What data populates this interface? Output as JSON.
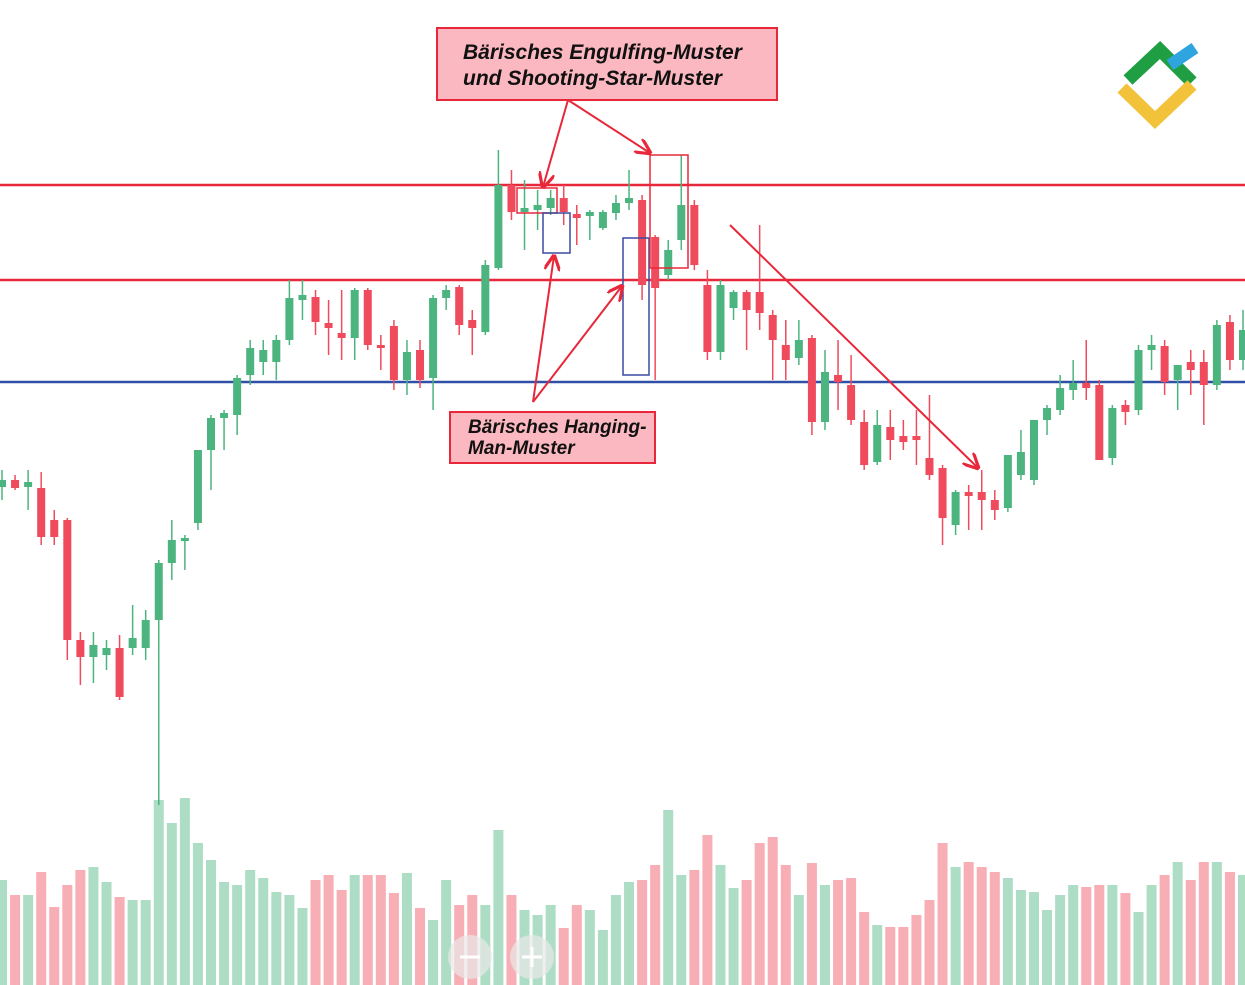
{
  "chart_data": {
    "type": "candlestick",
    "annotations": [
      [
        "Bärisches Engulfing-Muster",
        "und Shooting-Star-Muster"
      ],
      [
        "Bärisches Hanging-",
        "Man-Muster"
      ]
    ],
    "ylim": [
      15,
      1000
    ],
    "volume_ylim": [
      0,
      200
    ],
    "up_color": "#4cb47f",
    "down_color": "#ef4b5c",
    "levels": [
      {
        "value": 815,
        "color": "#e8283a"
      },
      {
        "value": 720,
        "color": "#e8283a"
      },
      {
        "value": 618,
        "color": "#3050a8"
      }
    ],
    "ohlc": [
      [
        513,
        530,
        500,
        520
      ],
      [
        520,
        525,
        510,
        512
      ],
      [
        513,
        530,
        490,
        518
      ],
      [
        512,
        528,
        455,
        463
      ],
      [
        480,
        490,
        455,
        463
      ],
      [
        480,
        482,
        340,
        360
      ],
      [
        360,
        368,
        315,
        343
      ],
      [
        343,
        368,
        317,
        355
      ],
      [
        345,
        360,
        330,
        352
      ],
      [
        352,
        365,
        300,
        303
      ],
      [
        352,
        395,
        345,
        362
      ],
      [
        352,
        390,
        340,
        380
      ],
      [
        380,
        440,
        195,
        437
      ],
      [
        437,
        480,
        420,
        460
      ],
      [
        459,
        465,
        430,
        462
      ],
      [
        477,
        550,
        470,
        550
      ],
      [
        550,
        585,
        510,
        582
      ],
      [
        582,
        590,
        550,
        587
      ],
      [
        585,
        625,
        565,
        622
      ],
      [
        625,
        660,
        615,
        652
      ],
      [
        638,
        660,
        625,
        650
      ],
      [
        638,
        665,
        620,
        660
      ],
      [
        660,
        720,
        655,
        702
      ],
      [
        700,
        720,
        680,
        705
      ],
      [
        703,
        710,
        665,
        678
      ],
      [
        677,
        700,
        645,
        672
      ],
      [
        667,
        710,
        640,
        662
      ],
      [
        662,
        712,
        640,
        710
      ],
      [
        710,
        712,
        650,
        655
      ],
      [
        655,
        665,
        630,
        652
      ],
      [
        674,
        680,
        610,
        620
      ],
      [
        620,
        660,
        605,
        648
      ],
      [
        650,
        660,
        612,
        620
      ],
      [
        622,
        705,
        590,
        702
      ],
      [
        702,
        715,
        690,
        710
      ],
      [
        713,
        715,
        665,
        675
      ],
      [
        680,
        690,
        645,
        672
      ],
      [
        668,
        740,
        665,
        735
      ],
      [
        732,
        850,
        730,
        815
      ],
      [
        815,
        830,
        780,
        788
      ],
      [
        788,
        820,
        750,
        792
      ],
      [
        790,
        810,
        770,
        795
      ],
      [
        792,
        810,
        785,
        802
      ],
      [
        802,
        815,
        775,
        788
      ],
      [
        786,
        795,
        755,
        782
      ],
      [
        784,
        790,
        760,
        788
      ],
      [
        772,
        790,
        770,
        788
      ],
      [
        787,
        805,
        780,
        797
      ],
      [
        797,
        830,
        790,
        802
      ],
      [
        800,
        805,
        700,
        715
      ],
      [
        763,
        765,
        620,
        712
      ],
      [
        725,
        760,
        720,
        750
      ],
      [
        760,
        845,
        750,
        795
      ],
      [
        795,
        800,
        730,
        735
      ],
      [
        715,
        730,
        640,
        648
      ],
      [
        648,
        720,
        640,
        715
      ],
      [
        692,
        710,
        680,
        708
      ],
      [
        708,
        710,
        650,
        690
      ],
      [
        708,
        775,
        670,
        687
      ],
      [
        685,
        690,
        620,
        660
      ],
      [
        655,
        680,
        620,
        640
      ],
      [
        642,
        680,
        635,
        660
      ],
      [
        662,
        665,
        565,
        578
      ],
      [
        578,
        650,
        570,
        628
      ],
      [
        625,
        660,
        590,
        618
      ],
      [
        615,
        645,
        575,
        580
      ],
      [
        578,
        590,
        530,
        535
      ],
      [
        538,
        590,
        535,
        575
      ],
      [
        573,
        590,
        540,
        560
      ],
      [
        564,
        580,
        550,
        558
      ],
      [
        564,
        590,
        535,
        560
      ],
      [
        542,
        605,
        520,
        525
      ],
      [
        532,
        535,
        455,
        482
      ],
      [
        475,
        510,
        465,
        508
      ],
      [
        508,
        515,
        470,
        504
      ],
      [
        508,
        530,
        470,
        500
      ],
      [
        500,
        510,
        480,
        490
      ],
      [
        492,
        545,
        488,
        545
      ],
      [
        525,
        570,
        520,
        548
      ],
      [
        520,
        580,
        515,
        580
      ],
      [
        580,
        595,
        565,
        592
      ],
      [
        590,
        625,
        585,
        612
      ],
      [
        610,
        640,
        600,
        617
      ],
      [
        617,
        660,
        600,
        612
      ],
      [
        615,
        620,
        540,
        540
      ],
      [
        542,
        595,
        535,
        592
      ],
      [
        595,
        600,
        575,
        588
      ],
      [
        590,
        655,
        585,
        650
      ],
      [
        650,
        665,
        630,
        655
      ],
      [
        654,
        660,
        605,
        618
      ],
      [
        620,
        635,
        590,
        635
      ],
      [
        638,
        650,
        605,
        630
      ],
      [
        638,
        650,
        575,
        615
      ],
      [
        615,
        680,
        610,
        675
      ],
      [
        678,
        685,
        630,
        640
      ],
      [
        640,
        690,
        630,
        670
      ]
    ],
    "volume": [
      105,
      90,
      90,
      113,
      78,
      100,
      115,
      118,
      103,
      88,
      85,
      85,
      185,
      162,
      187,
      142,
      125,
      103,
      100,
      115,
      107,
      93,
      90,
      77,
      105,
      110,
      95,
      110,
      110,
      110,
      92,
      112,
      77,
      65,
      105,
      80,
      90,
      80,
      155,
      90,
      75,
      70,
      80,
      57,
      80,
      75,
      55,
      90,
      103,
      105,
      120,
      175,
      110,
      115,
      150,
      120,
      97,
      105,
      142,
      148,
      120,
      90,
      122,
      100,
      105,
      107,
      73,
      60,
      58,
      58,
      70,
      85,
      142,
      118,
      123,
      118,
      113,
      107,
      95,
      93,
      75,
      90,
      100,
      98,
      100,
      100,
      92,
      73,
      100,
      110,
      123,
      105,
      123,
      123,
      113,
      110
    ]
  }
}
